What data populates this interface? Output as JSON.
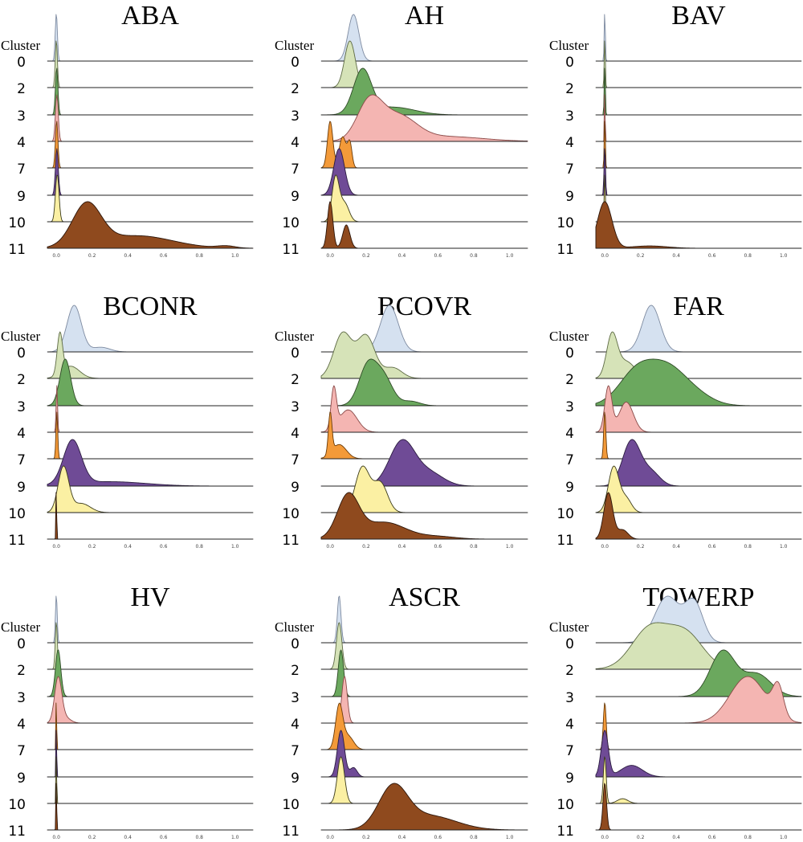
{
  "chart_data": {
    "type": "ridgeline",
    "cluster_header": "Cluster",
    "clusters": [
      "0",
      "2",
      "3",
      "4",
      "7",
      "9",
      "10",
      "11"
    ],
    "colors": [
      "#d5e1f0",
      "#d6e3b8",
      "#6ba85e",
      "#f4b5b2",
      "#f39a39",
      "#6f4b96",
      "#fbf0a3",
      "#8f4a1e"
    ],
    "xlim": [
      -0.05,
      1.1
    ],
    "xticks": [
      "0.0",
      "0.2",
      "0.4",
      "0.6",
      "0.8",
      "1.0"
    ],
    "panels": [
      {
        "title": "ABA",
        "series": [
          {
            "cluster": "0",
            "peaks": [
              [
                0.0,
                0.006,
                1.0
              ]
            ]
          },
          {
            "cluster": "2",
            "peaks": [
              [
                0.0,
                0.006,
                0.9
              ]
            ]
          },
          {
            "cluster": "3",
            "peaks": [
              [
                0.002,
                0.007,
                0.85
              ]
            ]
          },
          {
            "cluster": "4",
            "peaks": [
              [
                0.003,
                0.008,
                0.75
              ]
            ]
          },
          {
            "cluster": "7",
            "peaks": [
              [
                0.002,
                0.007,
                0.6
              ]
            ]
          },
          {
            "cluster": "9",
            "peaks": [
              [
                0.003,
                0.008,
                0.6
              ]
            ]
          },
          {
            "cluster": "10",
            "peaks": [
              [
                0.005,
                0.01,
                0.85
              ]
            ]
          },
          {
            "cluster": "11",
            "peaks": [
              [
                0.17,
                0.08,
                1.0
              ],
              [
                0.45,
                0.2,
                0.3
              ],
              [
                0.95,
                0.05,
                0.05
              ]
            ]
          }
        ]
      },
      {
        "title": "AH",
        "series": [
          {
            "cluster": "0",
            "peaks": [
              [
                0.13,
                0.03,
                1.0
              ]
            ]
          },
          {
            "cluster": "2",
            "peaks": [
              [
                0.11,
                0.03,
                0.95
              ]
            ]
          },
          {
            "cluster": "3",
            "peaks": [
              [
                0.18,
                0.05,
                0.85
              ],
              [
                0.35,
                0.12,
                0.15
              ]
            ]
          },
          {
            "cluster": "4",
            "peaks": [
              [
                0.22,
                0.07,
                0.8
              ],
              [
                0.38,
                0.1,
                0.5
              ],
              [
                0.65,
                0.2,
                0.1
              ]
            ]
          },
          {
            "cluster": "7",
            "peaks": [
              [
                0.0,
                0.015,
                0.9
              ],
              [
                0.07,
                0.02,
                0.6
              ],
              [
                0.11,
                0.012,
                0.45
              ]
            ]
          },
          {
            "cluster": "9",
            "peaks": [
              [
                0.05,
                0.03,
                1.0
              ]
            ]
          },
          {
            "cluster": "10",
            "peaks": [
              [
                0.03,
                0.02,
                0.95
              ],
              [
                0.08,
                0.025,
                0.4
              ]
            ]
          },
          {
            "cluster": "11",
            "peaks": [
              [
                0.0,
                0.015,
                1.0
              ],
              [
                0.09,
                0.02,
                0.5
              ]
            ]
          }
        ]
      },
      {
        "title": "BAV",
        "series": [
          {
            "cluster": "0",
            "peaks": [
              [
                0.0,
                0.003,
                0.95
              ]
            ]
          },
          {
            "cluster": "2",
            "peaks": [
              [
                0.0,
                0.003,
                0.8
              ]
            ]
          },
          {
            "cluster": "3",
            "peaks": [
              [
                0.0,
                0.003,
                0.7
              ]
            ]
          },
          {
            "cluster": "4",
            "peaks": [
              [
                0.0,
                0.002,
                0.3
              ]
            ]
          },
          {
            "cluster": "7",
            "peaks": [
              [
                0.0,
                0.003,
                0.4
              ]
            ]
          },
          {
            "cluster": "9",
            "peaks": [
              [
                0.0,
                0.004,
                0.7
              ]
            ]
          },
          {
            "cluster": "10",
            "peaks": [
              [
                0.0,
                0.003,
                0.4
              ]
            ]
          },
          {
            "cluster": "11",
            "peaks": [
              [
                0.0,
                0.04,
                1.0
              ],
              [
                0.25,
                0.1,
                0.05
              ]
            ]
          }
        ]
      },
      {
        "title": "BCONR",
        "series": [
          {
            "cluster": "0",
            "peaks": [
              [
                0.1,
                0.04,
                1.0
              ],
              [
                0.25,
                0.05,
                0.1
              ]
            ]
          },
          {
            "cluster": "2",
            "peaks": [
              [
                0.02,
                0.015,
                1.0
              ],
              [
                0.08,
                0.05,
                0.3
              ]
            ]
          },
          {
            "cluster": "3",
            "peaks": [
              [
                0.05,
                0.03,
                1.0
              ]
            ]
          },
          {
            "cluster": "4",
            "peaks": [
              [
                0.003,
                0.004,
                0.8
              ]
            ]
          },
          {
            "cluster": "7",
            "peaks": [
              [
                0.003,
                0.005,
                0.8
              ]
            ]
          },
          {
            "cluster": "9",
            "peaks": [
              [
                0.09,
                0.05,
                1.0
              ],
              [
                0.3,
                0.2,
                0.1
              ]
            ]
          },
          {
            "cluster": "10",
            "peaks": [
              [
                0.04,
                0.03,
                1.0
              ],
              [
                0.14,
                0.05,
                0.2
              ]
            ]
          },
          {
            "cluster": "11",
            "peaks": [
              [
                0.0,
                0.002,
                0.8
              ]
            ]
          }
        ]
      },
      {
        "title": "BCOVR",
        "series": [
          {
            "cluster": "0",
            "peaks": [
              [
                0.33,
                0.05,
                1.0
              ]
            ]
          },
          {
            "cluster": "2",
            "peaks": [
              [
                0.07,
                0.05,
                0.85
              ],
              [
                0.2,
                0.05,
                0.8
              ],
              [
                0.35,
                0.05,
                0.2
              ]
            ]
          },
          {
            "cluster": "3",
            "peaks": [
              [
                0.21,
                0.05,
                0.9
              ],
              [
                0.3,
                0.05,
                0.6
              ],
              [
                0.45,
                0.05,
                0.1
              ]
            ]
          },
          {
            "cluster": "4",
            "peaks": [
              [
                0.02,
                0.015,
                0.9
              ],
              [
                0.1,
                0.05,
                0.5
              ]
            ]
          },
          {
            "cluster": "7",
            "peaks": [
              [
                0.0,
                0.01,
                1.0
              ],
              [
                0.05,
                0.04,
                0.35
              ]
            ]
          },
          {
            "cluster": "9",
            "peaks": [
              [
                0.4,
                0.07,
                1.0
              ],
              [
                0.55,
                0.08,
                0.3
              ]
            ]
          },
          {
            "cluster": "10",
            "peaks": [
              [
                0.18,
                0.04,
                1.0
              ],
              [
                0.28,
                0.04,
                0.65
              ]
            ]
          },
          {
            "cluster": "11",
            "peaks": [
              [
                0.1,
                0.06,
                1.0
              ],
              [
                0.3,
                0.12,
                0.4
              ],
              [
                0.6,
                0.1,
                0.06
              ]
            ]
          }
        ]
      },
      {
        "title": "FAR",
        "series": [
          {
            "cluster": "0",
            "peaks": [
              [
                0.26,
                0.05,
                1.0
              ]
            ]
          },
          {
            "cluster": "2",
            "peaks": [
              [
                0.04,
                0.03,
                1.0
              ],
              [
                0.12,
                0.05,
                0.4
              ]
            ]
          },
          {
            "cluster": "3",
            "peaks": [
              [
                0.18,
                0.1,
                0.95
              ],
              [
                0.35,
                0.1,
                0.9
              ],
              [
                0.5,
                0.1,
                0.3
              ]
            ]
          },
          {
            "cluster": "4",
            "peaks": [
              [
                0.02,
                0.02,
                0.9
              ],
              [
                0.12,
                0.04,
                0.6
              ]
            ]
          },
          {
            "cluster": "7",
            "peaks": [
              [
                0.0,
                0.006,
                0.7
              ]
            ]
          },
          {
            "cluster": "9",
            "peaks": [
              [
                0.15,
                0.05,
                1.0
              ],
              [
                0.26,
                0.05,
                0.3
              ]
            ]
          },
          {
            "cluster": "10",
            "peaks": [
              [
                0.05,
                0.03,
                1.0
              ],
              [
                0.12,
                0.03,
                0.3
              ]
            ]
          },
          {
            "cluster": "11",
            "peaks": [
              [
                0.02,
                0.025,
                1.0
              ],
              [
                0.1,
                0.03,
                0.2
              ]
            ]
          }
        ]
      },
      {
        "title": "HV",
        "series": [
          {
            "cluster": "0",
            "peaks": [
              [
                0.0,
                0.005,
                1.0
              ]
            ]
          },
          {
            "cluster": "2",
            "peaks": [
              [
                0.0,
                0.006,
                0.9
              ]
            ]
          },
          {
            "cluster": "3",
            "peaks": [
              [
                0.01,
                0.015,
                0.8
              ]
            ]
          },
          {
            "cluster": "4",
            "peaks": [
              [
                0.01,
                0.02,
                0.85
              ],
              [
                0.05,
                0.03,
                0.1
              ]
            ]
          },
          {
            "cluster": "7",
            "peaks": [
              [
                0.0,
                0.002,
                0.5
              ]
            ]
          },
          {
            "cluster": "9",
            "peaks": [
              [
                0.0,
                0.002,
                0.5
              ]
            ]
          },
          {
            "cluster": "10",
            "peaks": [
              [
                0.0,
                0.002,
                0.5
              ]
            ]
          },
          {
            "cluster": "11",
            "peaks": [
              [
                0.0,
                0.002,
                0.6
              ]
            ]
          }
        ]
      },
      {
        "title": "ASCR",
        "series": [
          {
            "cluster": "0",
            "peaks": [
              [
                0.05,
                0.01,
                1.0
              ]
            ]
          },
          {
            "cluster": "2",
            "peaks": [
              [
                0.05,
                0.015,
                0.9
              ]
            ]
          },
          {
            "cluster": "3",
            "peaks": [
              [
                0.06,
                0.015,
                0.8
              ]
            ]
          },
          {
            "cluster": "4",
            "peaks": [
              [
                0.08,
                0.015,
                0.75
              ]
            ]
          },
          {
            "cluster": "7",
            "peaks": [
              [
                0.05,
                0.02,
                0.8
              ],
              [
                0.1,
                0.03,
                0.25
              ]
            ]
          },
          {
            "cluster": "9",
            "peaks": [
              [
                0.06,
                0.02,
                0.75
              ],
              [
                0.13,
                0.02,
                0.15
              ]
            ]
          },
          {
            "cluster": "10",
            "peaks": [
              [
                0.06,
                0.02,
                0.8
              ]
            ]
          },
          {
            "cluster": "11",
            "peaks": [
              [
                0.35,
                0.08,
                1.0
              ],
              [
                0.55,
                0.15,
                0.35
              ]
            ]
          }
        ]
      },
      {
        "title": "TOWERP",
        "series": [
          {
            "cluster": "0",
            "peaks": [
              [
                0.35,
                0.07,
                1.0
              ],
              [
                0.5,
                0.05,
                0.85
              ]
            ]
          },
          {
            "cluster": "2",
            "peaks": [
              [
                0.25,
                0.1,
                0.9
              ],
              [
                0.45,
                0.1,
                0.8
              ]
            ]
          },
          {
            "cluster": "3",
            "peaks": [
              [
                0.66,
                0.07,
                1.0
              ],
              [
                0.85,
                0.08,
                0.5
              ]
            ]
          },
          {
            "cluster": "4",
            "peaks": [
              [
                0.8,
                0.1,
                0.85
              ],
              [
                0.97,
                0.03,
                0.55
              ]
            ]
          },
          {
            "cluster": "7",
            "peaks": [
              [
                0.0,
                0.008,
                0.7
              ]
            ]
          },
          {
            "cluster": "9",
            "peaks": [
              [
                0.0,
                0.02,
                1.0
              ],
              [
                0.15,
                0.06,
                0.25
              ]
            ]
          },
          {
            "cluster": "10",
            "peaks": [
              [
                0.0,
                0.008,
                0.8
              ],
              [
                0.1,
                0.03,
                0.08
              ]
            ]
          },
          {
            "cluster": "11",
            "peaks": [
              [
                0.0,
                0.01,
                1.0
              ]
            ]
          }
        ]
      }
    ]
  }
}
